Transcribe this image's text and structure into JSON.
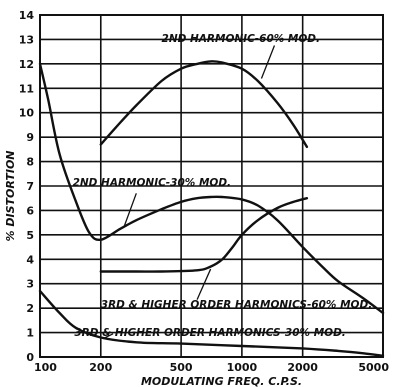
{
  "chart_data": {
    "type": "line",
    "title": "",
    "xlabel": "MODULATING FREQ. C.P.S.",
    "ylabel": "% DISTORTION",
    "x_scale": "log",
    "xlim": [
      100,
      5000
    ],
    "ylim": [
      0,
      14
    ],
    "x_ticks": [
      100,
      200,
      500,
      1000,
      2000,
      5000
    ],
    "x_tick_labels": [
      "100",
      "200",
      "500",
      "1000",
      "2000",
      "5000"
    ],
    "y_ticks": [
      0,
      1,
      2,
      3,
      4,
      5,
      6,
      7,
      8,
      9,
      10,
      11,
      12,
      13,
      14
    ],
    "y_tick_labels": [
      "0",
      "1",
      "2",
      "3",
      "4",
      "5",
      "6",
      "7",
      "8",
      "9",
      "10",
      "11",
      "12",
      "13",
      "14"
    ],
    "grid": true,
    "series": [
      {
        "name": "2ND HARMONIC-60% MOD.",
        "x": [
          200,
          250,
          300,
          400,
          500,
          600,
          700,
          800,
          1000,
          1200,
          1500,
          1800,
          2100
        ],
        "y": [
          8.7,
          9.6,
          10.3,
          11.3,
          11.8,
          12.0,
          12.1,
          12.05,
          11.8,
          11.3,
          10.4,
          9.5,
          8.6
        ]
      },
      {
        "name": "2ND HARMONIC-30% MOD.",
        "x": [
          100,
          110,
          125,
          150,
          175,
          200,
          250,
          300,
          400,
          500,
          600,
          700,
          800,
          1000,
          1200,
          1500,
          2000,
          2500,
          3000,
          4000,
          5000
        ],
        "y": [
          12.0,
          10.5,
          8.3,
          6.4,
          5.1,
          4.8,
          5.25,
          5.6,
          6.05,
          6.35,
          6.5,
          6.55,
          6.55,
          6.45,
          6.2,
          5.6,
          4.5,
          3.7,
          3.1,
          2.4,
          1.8
        ]
      },
      {
        "name": "3RD & HIGHER ORDER HARMONICS-60% MOD.",
        "x": [
          200,
          300,
          400,
          600,
          700,
          800,
          900,
          1000,
          1200,
          1500,
          1800,
          2100
        ],
        "y": [
          3.5,
          3.5,
          3.5,
          3.55,
          3.7,
          4.0,
          4.5,
          5.0,
          5.6,
          6.1,
          6.35,
          6.5
        ]
      },
      {
        "name": "3RD & HIGHER ORDER HARMONICS-30% MOD.",
        "x": [
          100,
          125,
          150,
          200,
          300,
          500,
          1000,
          2000,
          3000,
          4000,
          5000
        ],
        "y": [
          2.7,
          1.8,
          1.2,
          0.8,
          0.6,
          0.55,
          0.45,
          0.35,
          0.25,
          0.15,
          0.05
        ]
      }
    ],
    "annotations": [
      {
        "text": "2ND HARMONIC-60% MOD.",
        "x": 400,
        "y": 12.9
      },
      {
        "text": "2ND HARMONIC-30% MOD.",
        "x": 145,
        "y": 7.0
      },
      {
        "text": "3RD & HIGHER ORDER HARMONICS-60% MOD.",
        "x": 200,
        "y": 2.0
      },
      {
        "text": "3RD & HIGHER ORDER HARMONICS-30% MOD.",
        "x": 148,
        "y": 0.85
      }
    ]
  }
}
